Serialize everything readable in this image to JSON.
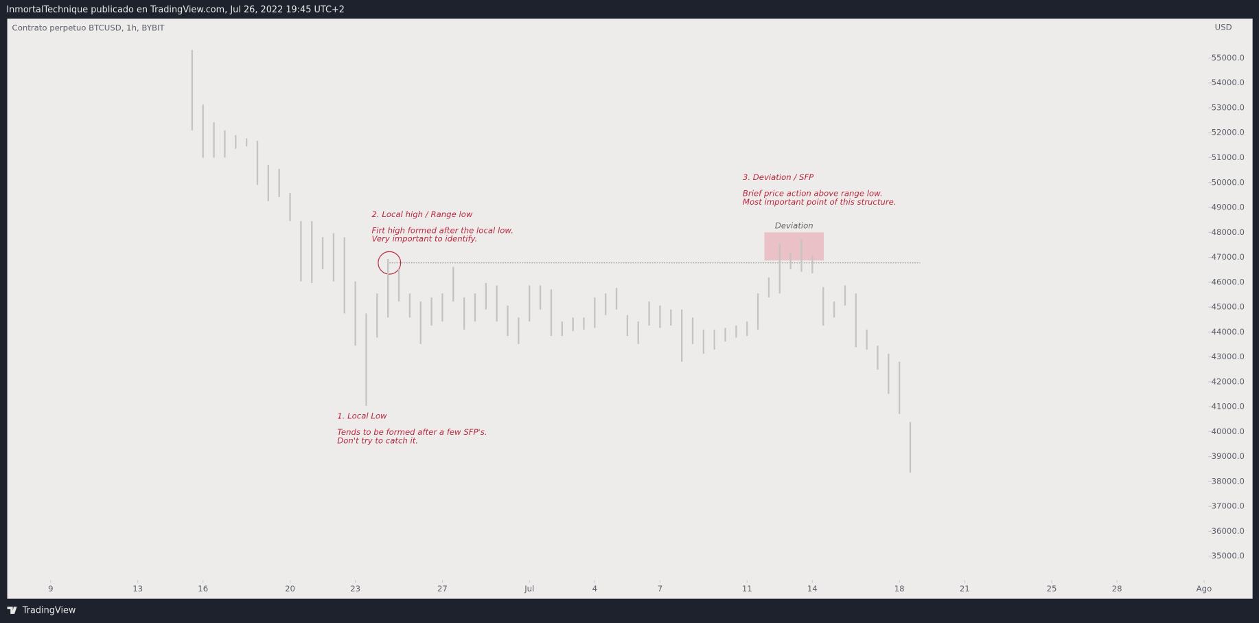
{
  "header": {
    "publisher": "InmortalTechnique publicado en TradingView.com, Jul 26, 2022 19:45 UTC+2"
  },
  "footer": {
    "brand": "TradingView"
  },
  "chart_data": {
    "type": "ohlc",
    "title": "Contrato perpetuo BTCUSD, 1h, BYBIT",
    "currency": "USD",
    "color": "#c4c4c4",
    "grid": false,
    "x": [
      14.5,
      15,
      15.5,
      16,
      16.5,
      17,
      17.5,
      18,
      18.5,
      19,
      19.5,
      20,
      20.5,
      21,
      21.5,
      22,
      22.5,
      23,
      23.5,
      24,
      24.5,
      25,
      25.5,
      26,
      26.5,
      27,
      27.5,
      28,
      28.5,
      29,
      29.5,
      30,
      30.5,
      31,
      31.5,
      32,
      32.5,
      33,
      33.5,
      34,
      34.5,
      35,
      35.5,
      36,
      36.5,
      37,
      37.5,
      38,
      38.5,
      39,
      39.5,
      40,
      40.5,
      41,
      41.5,
      42,
      42.5,
      43,
      43.5,
      44,
      44.5,
      45,
      45.5,
      46,
      46.5,
      47,
      47.5
    ],
    "high": [
      55323,
      53129,
      52419,
      52097,
      51903,
      51774,
      51677,
      50710,
      50548,
      49581,
      48452,
      48452,
      47806,
      47968,
      47806,
      46032,
      44742,
      45548,
      46935,
      46516,
      45548,
      45226,
      45387,
      45548,
      46613,
      45387,
      45548,
      45968,
      45871,
      45064,
      44581,
      45871,
      45871,
      45710,
      44419,
      44581,
      44581,
      45387,
      45548,
      45774,
      44677,
      44419,
      45226,
      45064,
      44903,
      44903,
      44581,
      44097,
      44097,
      44161,
      44258,
      44419,
      45548,
      46194,
      47548,
      47161,
      47710,
      47064,
      45806,
      45226,
      45871,
      45548,
      44097,
      43452,
      43129,
      42806,
      40387
    ],
    "low": [
      52097,
      51000,
      51000,
      51000,
      51355,
      51452,
      49903,
      49258,
      49419,
      48452,
      46032,
      45968,
      46516,
      46032,
      44742,
      43452,
      41032,
      43774,
      44581,
      45226,
      44581,
      43516,
      44258,
      44419,
      45226,
      44097,
      44419,
      44903,
      44419,
      43839,
      43516,
      44419,
      44903,
      43839,
      43839,
      44032,
      44097,
      44161,
      44677,
      44903,
      43839,
      43516,
      44258,
      44161,
      44258,
      42806,
      43516,
      43129,
      43290,
      43613,
      43774,
      43839,
      44097,
      45387,
      45548,
      46516,
      46419,
      46355,
      44258,
      44581,
      45064,
      43387,
      43290,
      42484,
      41516,
      40710,
      38355
    ],
    "xlim": [
      6.04,
      61.2
    ],
    "xticks": [
      {
        "value": 8,
        "label": "9"
      },
      {
        "value": 12,
        "label": "13"
      },
      {
        "value": 15,
        "label": "16"
      },
      {
        "value": 19,
        "label": "20"
      },
      {
        "value": 22,
        "label": "23"
      },
      {
        "value": 26,
        "label": "27"
      },
      {
        "value": 30,
        "label": "Jul"
      },
      {
        "value": 33,
        "label": "4"
      },
      {
        "value": 36,
        "label": "7"
      },
      {
        "value": 40,
        "label": "11"
      },
      {
        "value": 43,
        "label": "14"
      },
      {
        "value": 47,
        "label": "18"
      },
      {
        "value": 50,
        "label": "21"
      },
      {
        "value": 54,
        "label": "25"
      },
      {
        "value": 57,
        "label": "28"
      },
      {
        "value": 61,
        "label": "Ago"
      }
    ],
    "ylim": [
      33290,
      56613
    ],
    "yticks": [
      {
        "value": 35000,
        "label": "35000.0"
      },
      {
        "value": 36000,
        "label": "36000.0"
      },
      {
        "value": 37000,
        "label": "37000.0"
      },
      {
        "value": 38000,
        "label": "38000.0"
      },
      {
        "value": 39000,
        "label": "39000.0"
      },
      {
        "value": 40000,
        "label": "40000.0"
      },
      {
        "value": 41000,
        "label": "41000.0"
      },
      {
        "value": 42000,
        "label": "42000.0"
      },
      {
        "value": 43000,
        "label": "43000.0"
      },
      {
        "value": 44000,
        "label": "44000.0"
      },
      {
        "value": 45000,
        "label": "45000.0"
      },
      {
        "value": 46000,
        "label": "46000.0"
      },
      {
        "value": 47000,
        "label": "47000.0"
      },
      {
        "value": 48000,
        "label": "48000.0"
      },
      {
        "value": 49000,
        "label": "49000.0"
      },
      {
        "value": 50000,
        "label": "50000.0"
      },
      {
        "value": 51000,
        "label": "51000.0"
      },
      {
        "value": 52000,
        "label": "52000.0"
      },
      {
        "value": 53000,
        "label": "53000.0"
      },
      {
        "value": 54000,
        "label": "54000.0"
      },
      {
        "value": 55000,
        "label": "55000.0"
      }
    ],
    "annotations": [
      {
        "title": "1. Local Low",
        "lines": [
          "Tends to be formed after a few SFP's.",
          "Don't try to catch it."
        ]
      },
      {
        "title": "2. Local high / Range low",
        "lines": [
          "Firt high formed after the local low.",
          "Very important to identify."
        ]
      },
      {
        "title": "3. Deviation / SFP",
        "lines": [
          "Brief price action above range low.",
          "Most important point of this structure."
        ]
      }
    ],
    "zone_label": "Deviation"
  }
}
